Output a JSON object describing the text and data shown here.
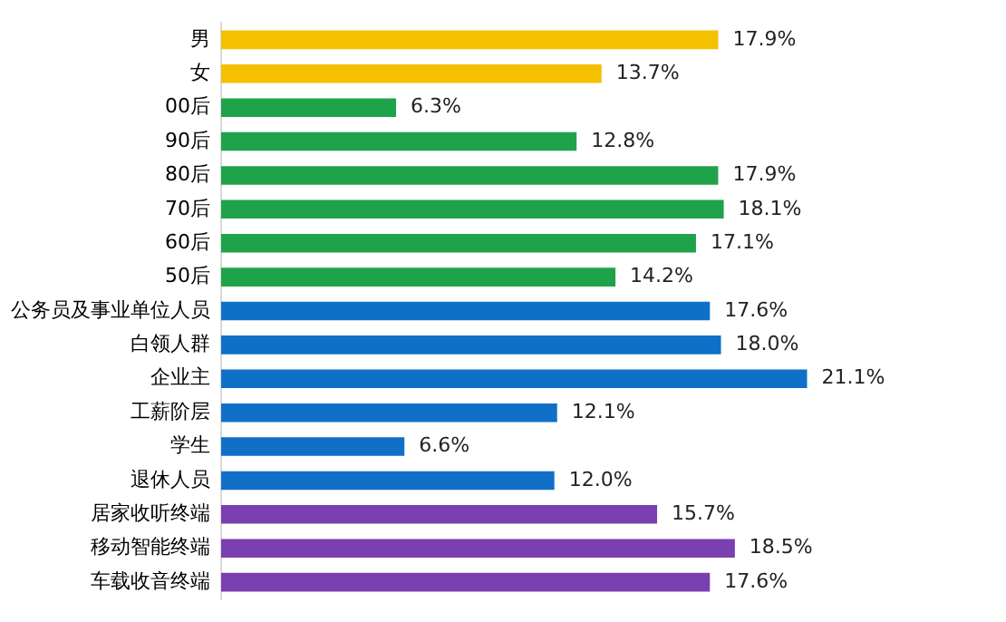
{
  "chart_data": {
    "type": "bar",
    "orientation": "horizontal",
    "categories": [
      "男",
      "女",
      "00后",
      "90后",
      "80后",
      "70后",
      "60后",
      "50后",
      "公务员及事业单位人员",
      "白领人群",
      "企业主",
      "工薪阶层",
      "学生",
      "退休人员",
      "居家收听终端",
      "移动智能终端",
      "车载收音终端"
    ],
    "values": [
      17.9,
      13.7,
      6.3,
      12.8,
      17.9,
      18.1,
      17.1,
      14.2,
      17.6,
      18.0,
      21.1,
      12.1,
      6.6,
      12.0,
      15.7,
      18.5,
      17.6
    ],
    "value_labels": [
      "17.9%",
      "13.7%",
      "6.3%",
      "12.8%",
      "17.9%",
      "18.1%",
      "17.1%",
      "14.2%",
      "17.6%",
      "18.0%",
      "21.1%",
      "12.1%",
      "6.6%",
      "12.0%",
      "15.7%",
      "18.5%",
      "17.6%"
    ],
    "colors": [
      "#f5c000",
      "#f5c000",
      "#1fa34a",
      "#1fa34a",
      "#1fa34a",
      "#1fa34a",
      "#1fa34a",
      "#1fa34a",
      "#1070c8",
      "#1070c8",
      "#1070c8",
      "#1070c8",
      "#1070c8",
      "#1070c8",
      "#7a3fb0",
      "#7a3fb0",
      "#7a3fb0"
    ],
    "tick_labels": "y",
    "legend": false
  }
}
